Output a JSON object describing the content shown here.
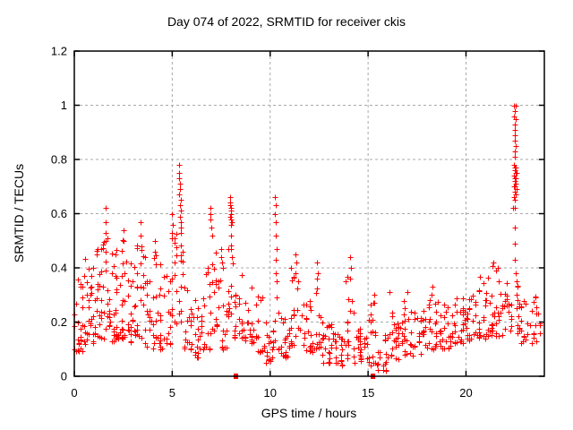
{
  "figure": {
    "background": "#ffffff",
    "border_color": "#000000",
    "grid_color": "#a8a8a8",
    "marker_color": "#ff0000"
  },
  "chart_data": {
    "type": "scatter",
    "title": "Day 074 of 2022, SRMTID for receiver ckis",
    "xlabel": "GPS time / hours",
    "ylabel": "SRMTID / TECUs",
    "xlim": [
      0,
      24
    ],
    "ylim": [
      0,
      1.2
    ],
    "grid": true,
    "legend": "none",
    "marker": "plus",
    "marker_color": "#ff0000",
    "x_ticks": [
      {
        "v": 0,
        "label": "0"
      },
      {
        "v": 5,
        "label": "5"
      },
      {
        "v": 10,
        "label": "10"
      },
      {
        "v": 15,
        "label": "15"
      },
      {
        "v": 20,
        "label": "20"
      }
    ],
    "y_ticks": [
      {
        "v": 0,
        "label": "0"
      },
      {
        "v": 0.2,
        "label": "0.2"
      },
      {
        "v": 0.4,
        "label": "0.4"
      },
      {
        "v": 0.6,
        "label": "0.6"
      },
      {
        "v": 0.8,
        "label": "0.8"
      },
      {
        "v": 1,
        "label": "1"
      },
      {
        "v": 1.2,
        "label": "1.2"
      }
    ],
    "band_note": "dense cloud of ~2000 points summarized as segments [x_start,x_end,y_min,y_max,count]; rendered as scattered plus markers",
    "dense_band_segments": [
      [
        0.0,
        0.5,
        0.09,
        0.4,
        26
      ],
      [
        0.5,
        1.0,
        0.12,
        0.44,
        28
      ],
      [
        1.0,
        1.5,
        0.14,
        0.5,
        28
      ],
      [
        1.5,
        1.8,
        0.15,
        0.55,
        16
      ],
      [
        1.8,
        2.3,
        0.13,
        0.47,
        26
      ],
      [
        2.3,
        2.8,
        0.14,
        0.52,
        24
      ],
      [
        2.8,
        3.2,
        0.12,
        0.46,
        20
      ],
      [
        3.2,
        3.6,
        0.1,
        0.5,
        18
      ],
      [
        3.6,
        4.0,
        0.1,
        0.36,
        16
      ],
      [
        4.0,
        4.3,
        0.12,
        0.46,
        14
      ],
      [
        4.3,
        4.9,
        0.1,
        0.42,
        24
      ],
      [
        4.9,
        5.2,
        0.16,
        0.55,
        14
      ],
      [
        5.2,
        5.6,
        0.2,
        0.55,
        16
      ],
      [
        5.6,
        6.0,
        0.1,
        0.34,
        16
      ],
      [
        6.0,
        6.5,
        0.07,
        0.3,
        20
      ],
      [
        6.5,
        7.0,
        0.1,
        0.42,
        18
      ],
      [
        7.0,
        7.3,
        0.14,
        0.5,
        12
      ],
      [
        7.3,
        7.8,
        0.1,
        0.4,
        18
      ],
      [
        7.8,
        8.1,
        0.22,
        0.5,
        12
      ],
      [
        8.1,
        8.7,
        0.14,
        0.38,
        22
      ],
      [
        8.7,
        9.3,
        0.12,
        0.34,
        22
      ],
      [
        9.3,
        9.7,
        0.09,
        0.3,
        14
      ],
      [
        9.7,
        10.1,
        0.05,
        0.2,
        14
      ],
      [
        10.1,
        10.4,
        0.1,
        0.3,
        10
      ],
      [
        10.4,
        11.0,
        0.07,
        0.22,
        22
      ],
      [
        11.0,
        11.5,
        0.1,
        0.4,
        18
      ],
      [
        11.5,
        12.2,
        0.09,
        0.3,
        24
      ],
      [
        12.2,
        12.6,
        0.1,
        0.38,
        14
      ],
      [
        12.6,
        13.4,
        0.05,
        0.2,
        30
      ],
      [
        13.4,
        13.8,
        0.04,
        0.16,
        14
      ],
      [
        13.8,
        14.3,
        0.06,
        0.38,
        18
      ],
      [
        14.3,
        14.9,
        0.05,
        0.2,
        22
      ],
      [
        14.9,
        15.5,
        0.04,
        0.28,
        20
      ],
      [
        15.5,
        16.0,
        0.02,
        0.16,
        16
      ],
      [
        16.0,
        16.7,
        0.06,
        0.24,
        24
      ],
      [
        16.7,
        17.3,
        0.07,
        0.28,
        22
      ],
      [
        17.3,
        18.0,
        0.08,
        0.26,
        24
      ],
      [
        18.0,
        18.6,
        0.1,
        0.32,
        22
      ],
      [
        18.6,
        19.4,
        0.1,
        0.28,
        28
      ],
      [
        19.4,
        20.0,
        0.12,
        0.3,
        24
      ],
      [
        20.0,
        20.6,
        0.13,
        0.33,
        24
      ],
      [
        20.6,
        21.2,
        0.14,
        0.38,
        24
      ],
      [
        21.2,
        21.8,
        0.15,
        0.42,
        24
      ],
      [
        21.8,
        22.35,
        0.15,
        0.4,
        20
      ],
      [
        22.6,
        23.0,
        0.12,
        0.35,
        16
      ],
      [
        23.0,
        23.8,
        0.12,
        0.3,
        22
      ]
    ],
    "notable_points": [
      [
        1.58,
        0.62
      ],
      [
        1.6,
        0.57
      ],
      [
        1.62,
        0.53
      ],
      [
        1.58,
        0.5
      ],
      [
        2.5,
        0.54
      ],
      [
        2.52,
        0.5
      ],
      [
        3.38,
        0.57
      ],
      [
        3.4,
        0.52
      ],
      [
        3.42,
        0.48
      ],
      [
        4.1,
        0.5
      ],
      [
        4.12,
        0.46
      ],
      [
        5.0,
        0.6
      ],
      [
        5.02,
        0.56
      ],
      [
        5.35,
        0.78
      ],
      [
        5.37,
        0.75
      ],
      [
        5.35,
        0.73
      ],
      [
        5.38,
        0.71
      ],
      [
        5.4,
        0.69
      ],
      [
        5.36,
        0.67
      ],
      [
        5.42,
        0.65
      ],
      [
        5.38,
        0.63
      ],
      [
        5.44,
        0.61
      ],
      [
        5.4,
        0.59
      ],
      [
        5.45,
        0.57
      ],
      [
        5.42,
        0.55
      ],
      [
        5.46,
        0.53
      ],
      [
        6.95,
        0.62
      ],
      [
        6.97,
        0.6
      ],
      [
        6.95,
        0.58
      ],
      [
        7.0,
        0.55
      ],
      [
        7.02,
        0.52
      ],
      [
        7.5,
        0.47
      ],
      [
        7.52,
        0.44
      ],
      [
        7.55,
        0.42
      ],
      [
        7.95,
        0.66
      ],
      [
        7.97,
        0.64
      ],
      [
        7.95,
        0.63
      ],
      [
        8.0,
        0.62
      ],
      [
        7.98,
        0.61
      ],
      [
        8.02,
        0.6
      ],
      [
        7.96,
        0.59
      ],
      [
        8.0,
        0.58
      ],
      [
        8.04,
        0.57
      ],
      [
        7.98,
        0.56
      ],
      [
        8.02,
        0.52
      ],
      [
        8.0,
        0.47
      ],
      [
        8.05,
        0.44
      ],
      [
        10.25,
        0.66
      ],
      [
        10.27,
        0.63
      ],
      [
        10.25,
        0.6
      ],
      [
        10.3,
        0.57
      ],
      [
        10.28,
        0.52
      ],
      [
        10.32,
        0.47
      ],
      [
        10.3,
        0.43
      ],
      [
        10.28,
        0.38
      ],
      [
        10.33,
        0.35
      ],
      [
        11.3,
        0.45
      ],
      [
        11.32,
        0.42
      ],
      [
        11.28,
        0.38
      ],
      [
        12.4,
        0.42
      ],
      [
        12.42,
        0.38
      ],
      [
        14.1,
        0.44
      ],
      [
        14.12,
        0.4
      ],
      [
        14.08,
        0.36
      ],
      [
        15.3,
        0.3
      ],
      [
        15.32,
        0.27
      ],
      [
        16.1,
        0.31
      ],
      [
        17.0,
        0.31
      ],
      [
        18.3,
        0.33
      ],
      [
        21.4,
        0.42
      ],
      [
        21.6,
        0.4
      ],
      [
        22.46,
        1.0
      ],
      [
        22.52,
        1.0
      ],
      [
        22.49,
        0.98
      ],
      [
        22.46,
        0.96
      ],
      [
        22.52,
        0.95
      ],
      [
        22.49,
        0.93
      ],
      [
        22.47,
        0.91
      ],
      [
        22.5,
        0.89
      ],
      [
        22.48,
        0.87
      ],
      [
        22.52,
        0.85
      ],
      [
        22.47,
        0.83
      ],
      [
        22.5,
        0.81
      ],
      [
        22.45,
        0.78
      ],
      [
        22.5,
        0.77
      ],
      [
        22.55,
        0.77
      ],
      [
        22.47,
        0.76
      ],
      [
        22.52,
        0.75
      ],
      [
        22.57,
        0.75
      ],
      [
        22.45,
        0.74
      ],
      [
        22.5,
        0.73
      ],
      [
        22.55,
        0.73
      ],
      [
        22.48,
        0.72
      ],
      [
        22.53,
        0.71
      ],
      [
        22.46,
        0.7
      ],
      [
        22.51,
        0.7
      ],
      [
        22.56,
        0.69
      ],
      [
        22.48,
        0.68
      ],
      [
        22.53,
        0.67
      ],
      [
        22.45,
        0.66
      ],
      [
        22.5,
        0.65
      ],
      [
        22.42,
        0.62
      ],
      [
        22.5,
        0.62
      ],
      [
        22.49,
        0.55
      ],
      [
        22.5,
        0.49
      ],
      [
        22.51,
        0.43
      ],
      [
        22.52,
        0.38
      ],
      [
        22.6,
        0.35
      ],
      [
        22.62,
        0.33
      ],
      [
        22.58,
        0.3
      ],
      [
        22.65,
        0.28
      ],
      [
        22.6,
        0.25
      ],
      [
        22.68,
        0.22
      ],
      [
        22.62,
        0.19
      ],
      [
        22.7,
        0.17
      ]
    ],
    "zero_flag_points": [
      [
        8.25,
        0
      ],
      [
        15.25,
        0
      ]
    ],
    "zero_flag_marker": "filled-square"
  }
}
